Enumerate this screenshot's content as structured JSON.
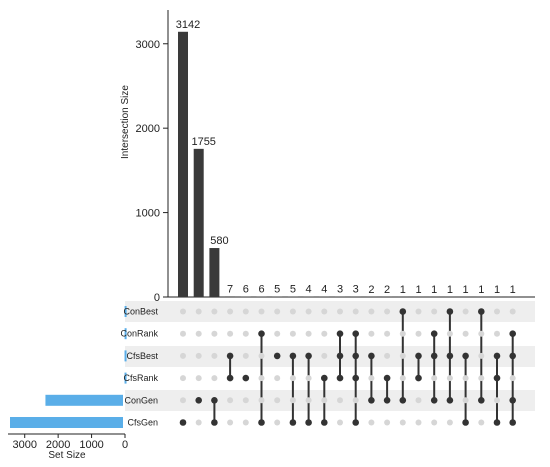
{
  "chart_data": {
    "type": "upset",
    "title": "",
    "intersection_axis_label": "Intersection Size",
    "set_size_axis_label": "Set Size",
    "intersection_ticks": [
      "0",
      "1000",
      "2000",
      "3000"
    ],
    "intersection_tick_values": [
      0,
      1000,
      2000,
      3000
    ],
    "intersection_ylim": [
      0,
      3400
    ],
    "set_size_ticks": [
      "3000",
      "2000",
      "1000",
      "0"
    ],
    "set_size_tick_values": [
      3000,
      2000,
      1000,
      0
    ],
    "set_size_xlim": [
      0,
      3500
    ],
    "sets": [
      {
        "name": "ConBest",
        "size": 12
      },
      {
        "name": "ConRank",
        "size": 12
      },
      {
        "name": "CfsBest",
        "size": 14
      },
      {
        "name": "CfsRank",
        "size": 14
      },
      {
        "name": "ConGen",
        "size": 2380
      },
      {
        "name": "CfsGen",
        "size": 3440
      }
    ],
    "intersections": [
      {
        "size": 3142,
        "label": "3142",
        "sets": [
          "CfsGen"
        ]
      },
      {
        "size": 1755,
        "label": "1755",
        "sets": [
          "ConGen"
        ]
      },
      {
        "size": 580,
        "label": "580",
        "sets": [
          "ConGen",
          "CfsGen"
        ]
      },
      {
        "size": 7,
        "label": "7",
        "sets": [
          "CfsBest",
          "CfsRank"
        ]
      },
      {
        "size": 6,
        "label": "6",
        "sets": [
          "CfsRank"
        ]
      },
      {
        "size": 6,
        "label": "6",
        "sets": [
          "ConRank",
          "CfsGen"
        ]
      },
      {
        "size": 5,
        "label": "5",
        "sets": [
          "CfsBest"
        ]
      },
      {
        "size": 5,
        "label": "5",
        "sets": [
          "CfsBest",
          "CfsGen"
        ]
      },
      {
        "size": 4,
        "label": "4",
        "sets": [
          "CfsBest",
          "CfsGen"
        ]
      },
      {
        "size": 4,
        "label": "4",
        "sets": [
          "CfsRank",
          "CfsGen"
        ]
      },
      {
        "size": 3,
        "label": "3",
        "sets": [
          "ConRank",
          "CfsBest",
          "CfsRank"
        ]
      },
      {
        "size": 3,
        "label": "3",
        "sets": [
          "ConRank",
          "CfsBest",
          "CfsRank",
          "CfsGen"
        ]
      },
      {
        "size": 2,
        "label": "2",
        "sets": [
          "CfsBest",
          "ConGen"
        ]
      },
      {
        "size": 2,
        "label": "2",
        "sets": [
          "CfsRank",
          "ConGen"
        ]
      },
      {
        "size": 1,
        "label": "1",
        "sets": [
          "ConBest",
          "ConGen"
        ]
      },
      {
        "size": 1,
        "label": "1",
        "sets": [
          "CfsBest",
          "CfsRank"
        ]
      },
      {
        "size": 1,
        "label": "1",
        "sets": [
          "ConRank",
          "CfsBest",
          "ConGen"
        ]
      },
      {
        "size": 1,
        "label": "1",
        "sets": [
          "ConBest",
          "CfsBest",
          "ConGen"
        ]
      },
      {
        "size": 1,
        "label": "1",
        "sets": [
          "CfsBest",
          "CfsGen"
        ]
      },
      {
        "size": 1,
        "label": "1",
        "sets": [
          "ConBest",
          "ConGen"
        ]
      },
      {
        "size": 1,
        "label": "1",
        "sets": [
          "CfsBest",
          "CfsRank",
          "CfsGen"
        ]
      },
      {
        "size": 1,
        "label": "1",
        "sets": [
          "ConRank",
          "CfsBest",
          "ConGen",
          "CfsGen"
        ]
      }
    ],
    "colors": {
      "bar": "#3a3a3a",
      "set_bar": "#5aaee8",
      "dot_active": "#333333",
      "dot_inactive": "#d6d6d6",
      "stripe": "#eeeeee",
      "axis": "#222222"
    }
  }
}
